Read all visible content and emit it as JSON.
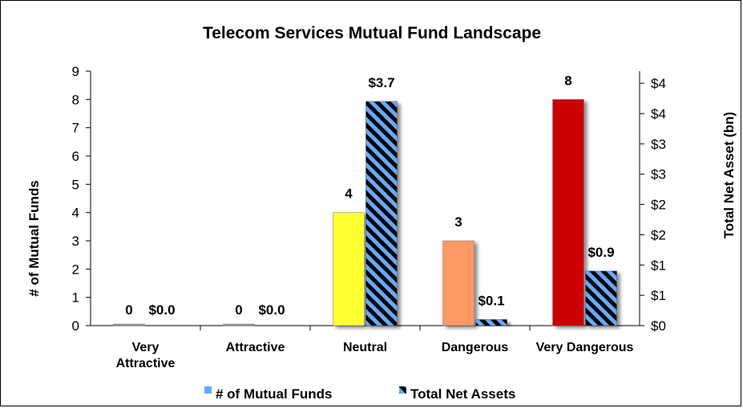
{
  "chart_data": {
    "type": "bar",
    "title": "Telecom Services Mutual Fund Landscape",
    "categories": [
      "Very Attractive",
      "Attractive",
      "Neutral",
      "Dangerous",
      "Very Dangerous"
    ],
    "series": [
      {
        "name": "# of Mutual Funds",
        "axis": "left",
        "values": [
          0,
          0,
          4,
          3,
          8
        ],
        "labels": [
          "0",
          "0",
          "4",
          "3",
          "8"
        ],
        "colors": [
          "#9a9a9a",
          "#9a9a9a",
          "#ffff33",
          "#ff9966",
          "#cc0000"
        ]
      },
      {
        "name": "Total Net Assets",
        "axis": "right",
        "values": [
          0.0,
          0.0,
          3.7,
          0.1,
          0.9
        ],
        "labels": [
          "$0.0",
          "$0.0",
          "$3.7",
          "$0.1",
          "$0.9"
        ],
        "colors": [
          "#66aaff",
          "#000000"
        ]
      }
    ],
    "ylabel_left": "# of Mutual Funds",
    "ylabel_right": "Total Net Asset (bn)",
    "ylim_left": [
      0,
      9
    ],
    "ylim_right": [
      0,
      4.2
    ],
    "yticks_left": [
      "0",
      "1",
      "2",
      "3",
      "4",
      "5",
      "6",
      "7",
      "8",
      "9"
    ],
    "yticks_right": [
      "$0",
      "$1",
      "$1",
      "$2",
      "$2",
      "$3",
      "$3",
      "$4",
      "$4"
    ],
    "legend_position": "bottom",
    "grid": false
  }
}
